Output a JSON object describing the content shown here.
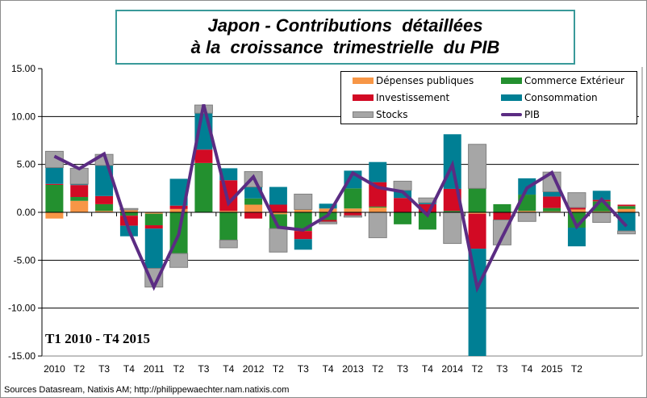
{
  "title_lines": [
    "Japon - Contributions  détaillées",
    "à la  croissance  trimestrielle  du PIB"
  ],
  "period_label": "T1 2010  -  T4 2015",
  "source": "Sources Datasream, Natixis AM;  http://philippewaechter.nam.natixis.com",
  "chart_data": {
    "type": "bar",
    "stacked": true,
    "title": "Japon - Contributions détaillées à la croissance trimestrielle du PIB",
    "categories": [
      "2010",
      "T2",
      "T3",
      "T4",
      "2011",
      "T2",
      "T3",
      "T4",
      "2012",
      "T2",
      "T3",
      "T4",
      "2013",
      "T2",
      "T3",
      "T4",
      "2014",
      "T2",
      "T3",
      "T4",
      "2015",
      "T2",
      "",
      ""
    ],
    "ylim": [
      -15,
      15
    ],
    "yticks": [
      "15.00",
      "10.00",
      "5.00",
      "0.00",
      "-5.00",
      "-10.00",
      "-15.00"
    ],
    "ytick_values": [
      15,
      10,
      5,
      0,
      -5,
      -10,
      -15
    ],
    "grid": true,
    "legend_position": "top-right",
    "series": [
      {
        "name": "Dépenses publiques",
        "color": "#F79646",
        "type": "bar",
        "values": [
          -0.65,
          1.2,
          0.15,
          0.25,
          -0.15,
          0.35,
          0,
          0.15,
          0.8,
          -0.2,
          0.3,
          0.4,
          0.4,
          0.5,
          0,
          0,
          0,
          -0.15,
          0,
          0.15,
          0.1,
          0.3,
          0.1,
          0.35
        ]
      },
      {
        "name": "Commerce Extérieur",
        "color": "#23902F",
        "type": "bar",
        "values": [
          2.87,
          0.4,
          0.7,
          -0.35,
          -1.2,
          -4.3,
          5.15,
          -2.9,
          0.65,
          -1.5,
          -1.95,
          -0.8,
          2.1,
          0.1,
          -1.25,
          -1.8,
          0.15,
          2.5,
          0.85,
          1.7,
          0.35,
          -1.6,
          1.05,
          0.3
        ]
      },
      {
        "name": "Investissement",
        "color": "#D20A24",
        "type": "bar",
        "values": [
          0.1,
          1.25,
          0.85,
          -1.05,
          -0.35,
          0.35,
          1.4,
          3.2,
          -0.65,
          0.8,
          -0.85,
          -0.2,
          -0.35,
          2.55,
          1.5,
          0.85,
          2.3,
          -3.65,
          -0.8,
          0,
          1.2,
          0.2,
          0.15,
          0.15
        ]
      },
      {
        "name": "Consommation",
        "color": "#007F94",
        "type": "bar",
        "values": [
          1.7,
          0.1,
          3.2,
          -1.1,
          -4.15,
          2.8,
          3.8,
          1.25,
          1.2,
          1.85,
          -1.1,
          0.5,
          1.85,
          2.1,
          0.8,
          0.15,
          5.7,
          -11.2,
          0,
          1.7,
          0.5,
          -1.95,
          0.95,
          -1.95
        ]
      },
      {
        "name": "Stocks",
        "color": "#A6A6A6",
        "type": "bar",
        "values": [
          1.7,
          1.65,
          1.15,
          0.15,
          -1.95,
          -1.45,
          0.85,
          -0.8,
          1.6,
          -2.45,
          1.6,
          -0.2,
          -0.15,
          -2.65,
          0.95,
          0.5,
          -3.25,
          4.6,
          -2.6,
          -0.95,
          2.05,
          1.55,
          -1.05,
          -0.3
        ]
      },
      {
        "name": "PIB",
        "color": "#5B2C83",
        "type": "line",
        "values": [
          5.85,
          4.55,
          6.1,
          -1.9,
          -7.8,
          -2.3,
          11.25,
          0.95,
          3.7,
          -1.55,
          -1.85,
          -0.3,
          4.1,
          2.6,
          2.15,
          -0.3,
          4.95,
          -7.9,
          -2.6,
          2.55,
          4.15,
          -1.5,
          1.35,
          -1.45
        ]
      }
    ]
  }
}
